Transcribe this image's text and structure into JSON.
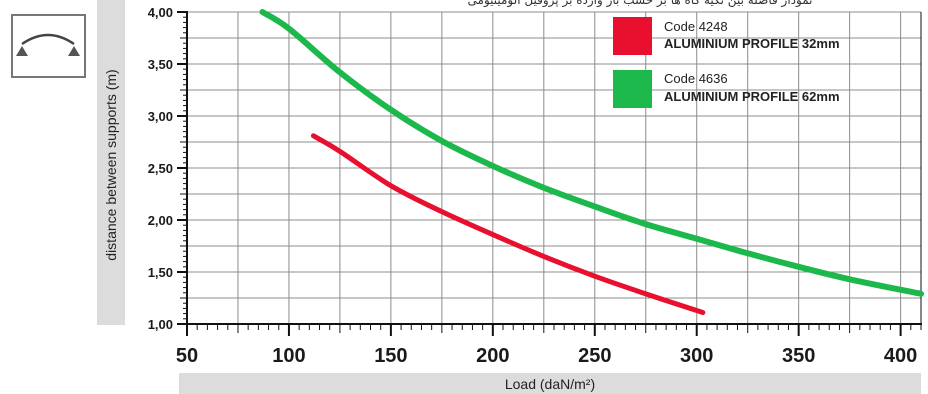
{
  "top_text": "نمودار فاصله بین تکیه گاه ها بر حسب بار وارده بر پروفیل آلومینیومی",
  "chart_data": {
    "type": "line",
    "xlabel": "Load (daN/m²)",
    "ylabel": "distance between supports (m)",
    "xlim": [
      50,
      410
    ],
    "ylim": [
      1.0,
      4.0
    ],
    "x_ticks": [
      "50",
      "100",
      "150",
      "200",
      "250",
      "300",
      "350",
      "400"
    ],
    "y_ticks": [
      "1,00",
      "1,50",
      "2,00",
      "2,50",
      "3,00",
      "3,50",
      "4,00"
    ],
    "grid": true,
    "legend_position": "top-right",
    "series": [
      {
        "name": "ALUMINIUM PROFILE 32mm",
        "code": "Code 4248",
        "color": "#e8102e",
        "x": [
          112,
          125,
          150,
          175,
          200,
          225,
          250,
          275,
          303
        ],
        "y": [
          2.81,
          2.66,
          2.33,
          2.08,
          1.86,
          1.65,
          1.46,
          1.29,
          1.11
        ]
      },
      {
        "name": "ALUMINIUM PROFILE 62mm",
        "code": "Code 4636",
        "color": "#1db84c",
        "x": [
          87,
          100,
          125,
          150,
          175,
          200,
          225,
          250,
          275,
          300,
          325,
          350,
          375,
          410
        ],
        "y": [
          4.0,
          3.84,
          3.42,
          3.06,
          2.76,
          2.52,
          2.31,
          2.13,
          1.96,
          1.82,
          1.68,
          1.55,
          1.43,
          1.29
        ]
      }
    ]
  }
}
